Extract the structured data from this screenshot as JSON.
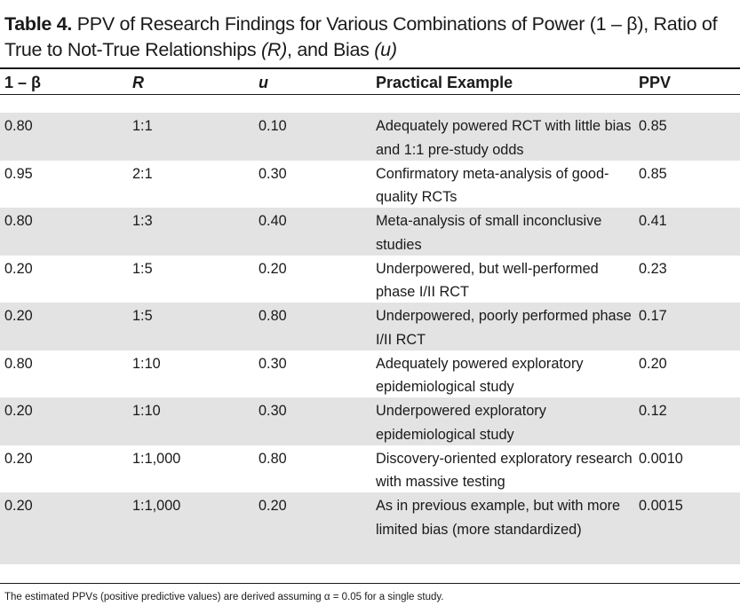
{
  "caption": {
    "label": "Table 4.",
    "text_part1": " PPV of Research Findings for Various Combinations of Power (1 – β), Ratio of True to Not-True Relationships ",
    "r_symbol": "(R)",
    "text_part2": ", and Bias ",
    "u_symbol": "(u)"
  },
  "headers": [
    "1 – β",
    "R",
    "u",
    "Practical Example",
    "PPV"
  ],
  "rows": [
    {
      "power": "0.80",
      "ratio": "1:1",
      "bias": "0.10",
      "example": "Adequately powered RCT with little bias and 1:1 pre-study odds",
      "ppv": "0.85"
    },
    {
      "power": "0.95",
      "ratio": "2:1",
      "bias": "0.30",
      "example": "Confirmatory meta-analysis of good-quality RCTs",
      "ppv": "0.85"
    },
    {
      "power": "0.80",
      "ratio": "1:3",
      "bias": "0.40",
      "example": "Meta-analysis of small inconclusive studies",
      "ppv": "0.41"
    },
    {
      "power": "0.20",
      "ratio": "1:5",
      "bias": "0.20",
      "example": "Underpowered, but well-performed phase I/II  RCT",
      "ppv": "0.23"
    },
    {
      "power": "0.20",
      "ratio": "1:5",
      "bias": "0.80",
      "example": "Underpowered, poorly performed phase I/II RCT",
      "ppv": "0.17"
    },
    {
      "power": "0.80",
      "ratio": "1:10",
      "bias": "0.30",
      "example": "Adequately powered exploratory epidemiological study",
      "ppv": "0.20"
    },
    {
      "power": "0.20",
      "ratio": "1:10",
      "bias": "0.30",
      "example": "Underpowered exploratory epidemiological study",
      "ppv": "0.12"
    },
    {
      "power": "0.20",
      "ratio": "1:1,000",
      "bias": "0.80",
      "example": "Discovery-oriented exploratory research with massive testing",
      "ppv": "0.0010"
    },
    {
      "power": "0.20",
      "ratio": "1:1,000",
      "bias": "0.20",
      "example": "As in previous example, but with more limited bias (more standardized)",
      "ppv": "0.0015"
    }
  ],
  "footnote": "The estimated PPVs (positive predictive values) are derived assuming α = 0.05 for a single study."
}
